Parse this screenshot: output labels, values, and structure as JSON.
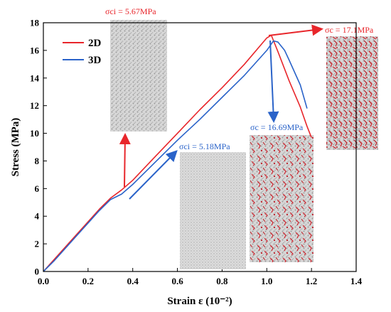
{
  "chart_data": {
    "type": "line",
    "xlabel": "Strain  ε (10⁻²)",
    "ylabel": "Stress (MPa)",
    "xlim": [
      0,
      1.4
    ],
    "ylim": [
      0,
      18
    ],
    "xticks": [
      0.0,
      0.2,
      0.4,
      0.6,
      0.8,
      1.0,
      1.2,
      1.4
    ],
    "yticks": [
      0,
      2,
      4,
      6,
      8,
      10,
      12,
      14,
      16,
      18
    ],
    "xtick_labels": [
      "0.0",
      "0.2",
      "0.4",
      "0.6",
      "0.8",
      "1.0",
      "1.2",
      "1.4"
    ],
    "ytick_labels": [
      "0",
      "2",
      "4",
      "6",
      "8",
      "10",
      "12",
      "14",
      "16",
      "18"
    ],
    "legend_position": "top-left",
    "series": [
      {
        "name": "2D",
        "color": "#e8262b",
        "x": [
          0,
          0.05,
          0.1,
          0.15,
          0.2,
          0.25,
          0.3,
          0.35,
          0.4,
          0.5,
          0.6,
          0.7,
          0.8,
          0.9,
          1.0,
          1.02,
          1.05,
          1.1,
          1.15,
          1.18,
          1.2
        ],
        "y": [
          0,
          0.9,
          1.8,
          2.7,
          3.6,
          4.5,
          5.3,
          5.9,
          6.6,
          8.3,
          10.0,
          11.7,
          13.3,
          15.0,
          16.9,
          17.1,
          15.9,
          13.8,
          11.9,
          10.5,
          9.7
        ]
      },
      {
        "name": "3D",
        "color": "#2a63c9",
        "x": [
          0,
          0.05,
          0.1,
          0.15,
          0.2,
          0.25,
          0.3,
          0.35,
          0.4,
          0.5,
          0.6,
          0.7,
          0.8,
          0.9,
          1.0,
          1.03,
          1.05,
          1.08,
          1.1,
          1.15,
          1.18
        ],
        "y": [
          0,
          0.8,
          1.7,
          2.6,
          3.5,
          4.4,
          5.2,
          5.6,
          6.3,
          7.9,
          9.5,
          11.0,
          12.6,
          14.2,
          16.0,
          16.69,
          16.6,
          16.0,
          15.3,
          13.5,
          11.8
        ]
      }
    ],
    "annotations": [
      {
        "text": "σci = 5.67MPa",
        "color": "#e8262b",
        "x": 0.35,
        "y": 6.2
      },
      {
        "text": "σci = 5.18MPa",
        "color": "#2a63c9",
        "x": 0.33,
        "y": 5.2
      },
      {
        "text": "σc = 16.69MPa",
        "color": "#2a63c9",
        "x": 1.03,
        "y": 16.69
      },
      {
        "text": "σc = 17.1MPa",
        "color": "#e8262b",
        "x": 1.02,
        "y": 17.1
      }
    ]
  }
}
